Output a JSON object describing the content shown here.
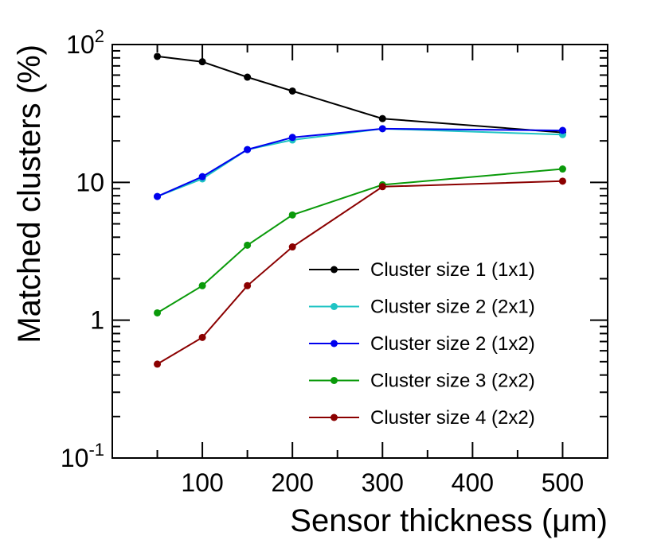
{
  "chart_data": {
    "type": "line",
    "title": "",
    "xlabel": "Sensor thickness (μm)",
    "ylabel": "Matched clusters (%)",
    "x_scale": "linear",
    "y_scale": "log",
    "xlim": [
      0,
      550
    ],
    "ylim": [
      0.1,
      100
    ],
    "x_ticks": [
      100,
      200,
      300,
      400,
      500
    ],
    "x_tick_labels": [
      "100",
      "200",
      "300",
      "400",
      "500"
    ],
    "y_ticks": [
      0.1,
      1,
      10,
      100
    ],
    "y_tick_labels": [
      {
        "base": "10",
        "exp": "-1"
      },
      {
        "base": "1",
        "exp": ""
      },
      {
        "base": "10",
        "exp": ""
      },
      {
        "base": "10",
        "exp": "2"
      }
    ],
    "grid": false,
    "legend_position": "center-right",
    "x": [
      50,
      100,
      150,
      200,
      300,
      500
    ],
    "series": [
      {
        "name": "Cluster size 1 (1x1)",
        "color": "#000000",
        "values": [
          82,
          75,
          58,
          46,
          29,
          23
        ]
      },
      {
        "name": "Cluster size 2 (2x1)",
        "color": "#1fc4c4",
        "values": [
          7.9,
          10.6,
          17.3,
          20.3,
          24.5,
          22.2
        ]
      },
      {
        "name": "Cluster size 2 (1x2)",
        "color": "#0000ee",
        "values": [
          7.9,
          11.0,
          17.3,
          21.2,
          24.5,
          23.8
        ]
      },
      {
        "name": "Cluster size 3 (2x2)",
        "color": "#0a9a0a",
        "values": [
          1.13,
          1.78,
          3.5,
          5.8,
          9.6,
          12.5
        ]
      },
      {
        "name": "Cluster size 4 (2x2)",
        "color": "#8b0000",
        "values": [
          0.48,
          0.75,
          1.78,
          3.4,
          9.3,
          10.2
        ]
      }
    ]
  }
}
